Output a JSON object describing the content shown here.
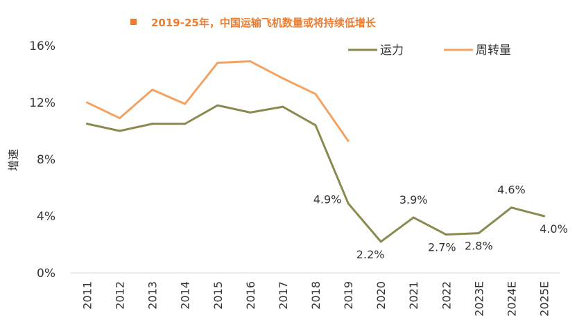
{
  "chart_data": {
    "type": "line",
    "title": "2019-25年，中国运输飞机数量或将持续低增长",
    "ylabel": "增速",
    "xlabel": "",
    "ylim": [
      0,
      16
    ],
    "y_ticks": [
      "0%",
      "4%",
      "8%",
      "12%",
      "16%"
    ],
    "y_tick_values": [
      0,
      4,
      8,
      12,
      16
    ],
    "categories": [
      "2011",
      "2012",
      "2013",
      "2014",
      "2015",
      "2016",
      "2017",
      "2018",
      "2019",
      "2020",
      "2021",
      "2022",
      "2023E",
      "2024E",
      "2025E"
    ],
    "grid": false,
    "legend_position": "top-right",
    "series": [
      {
        "name": "运力",
        "color": "#8B8A4E",
        "values": [
          10.5,
          10.0,
          10.5,
          10.5,
          11.8,
          11.3,
          11.7,
          10.4,
          4.9,
          2.2,
          3.9,
          2.7,
          2.8,
          4.6,
          4.0
        ],
        "data_labels": [
          "",
          "",
          "",
          "",
          "",
          "",
          "",
          "",
          "4.9%",
          "2.2%",
          "3.9%",
          "2.7%",
          "2.8%",
          "4.6%",
          "4.0%"
        ]
      },
      {
        "name": "周转量",
        "color": "#F4A261",
        "values": [
          12.0,
          10.9,
          12.9,
          11.9,
          14.8,
          14.9,
          13.7,
          12.6,
          9.3,
          null,
          null,
          null,
          null,
          null,
          null
        ],
        "data_labels": []
      }
    ]
  }
}
